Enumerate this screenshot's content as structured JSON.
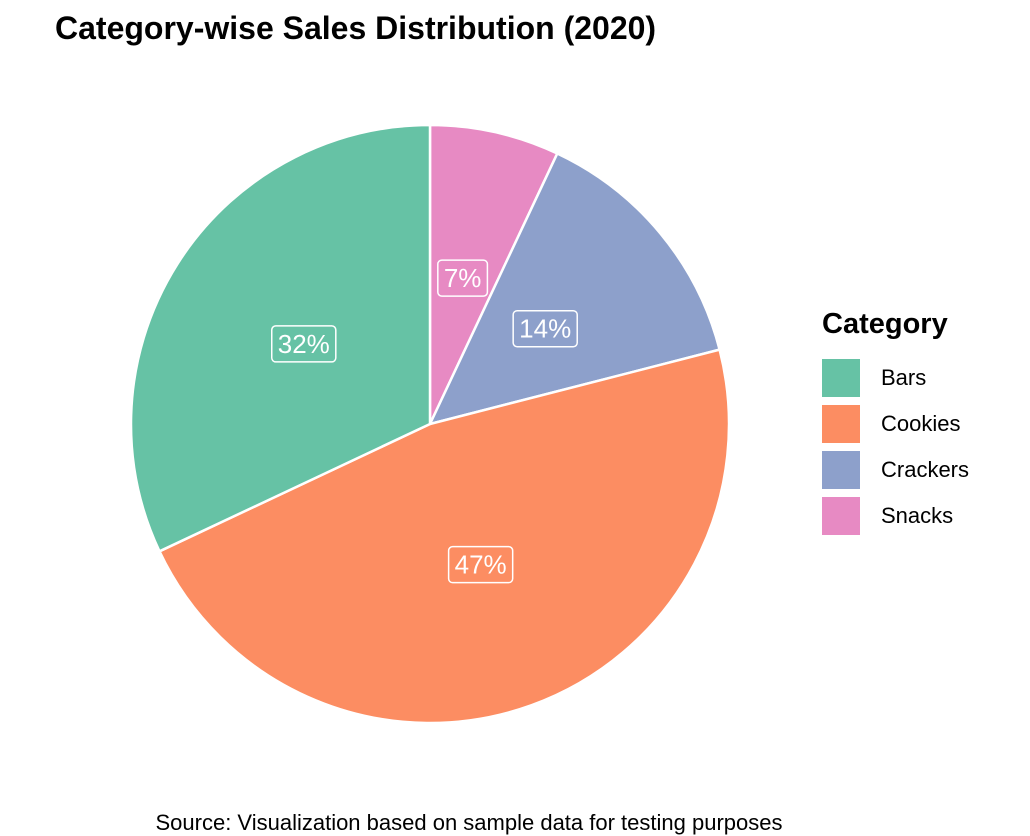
{
  "title": "Category-wise Sales Distribution (2020)",
  "caption": "Source: Visualization based on sample data for testing purposes",
  "chart_data": {
    "type": "pie",
    "title": "Category-wise Sales Distribution (2020)",
    "legend_title": "Category",
    "legend_position": "right",
    "direction": "clockwise",
    "start": "top",
    "categories": [
      "Snacks",
      "Crackers",
      "Cookies",
      "Bars"
    ],
    "values": [
      7,
      14,
      47,
      32
    ],
    "labels": [
      "7%",
      "14%",
      "47%",
      "32%"
    ],
    "colors": [
      "#e78ac3",
      "#8da0cb",
      "#fc8d62",
      "#66c2a5"
    ]
  },
  "legend": {
    "title": "Category",
    "items": [
      {
        "label": "Bars",
        "color": "#66c2a5"
      },
      {
        "label": "Cookies",
        "color": "#fc8d62"
      },
      {
        "label": "Crackers",
        "color": "#8da0cb"
      },
      {
        "label": "Snacks",
        "color": "#e78ac3"
      }
    ]
  }
}
